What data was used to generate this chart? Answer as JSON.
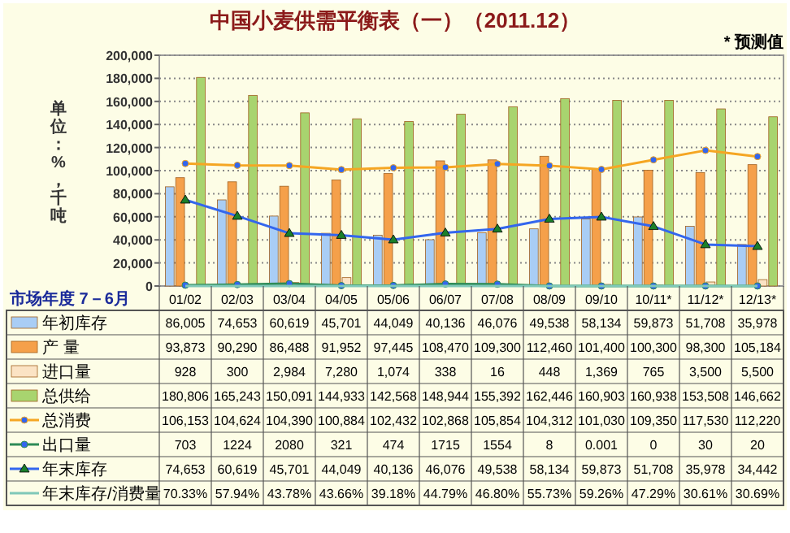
{
  "chart_data": {
    "type": "bar",
    "title": "中国小麦供需平衡表（一）（2011.12）",
    "ylabel": "单位：%，千吨",
    "xlabel": "市场年度 7－6月",
    "annotations": [
      "* 预测值"
    ],
    "categories": [
      "01/02",
      "02/03",
      "03/04",
      "04/05",
      "05/06",
      "06/07",
      "07/08",
      "08/09",
      "09/10",
      "10/11*",
      "11/12*",
      "12/13*"
    ],
    "ylim": [
      0,
      200000
    ],
    "yticks": [
      {
        "value": 0,
        "label": "0"
      },
      {
        "value": 20000,
        "label": "20,000"
      },
      {
        "value": 40000,
        "label": "40,000"
      },
      {
        "value": 60000,
        "label": "60,000"
      },
      {
        "value": 80000,
        "label": "80,000"
      },
      {
        "value": 100000,
        "label": "100,000"
      },
      {
        "value": 120000,
        "label": "120,000"
      },
      {
        "value": 140000,
        "label": "140,000"
      },
      {
        "value": 160000,
        "label": "160,000"
      },
      {
        "value": 180000,
        "label": "180,000"
      },
      {
        "value": 200000,
        "label": "200,000"
      }
    ],
    "grid": "y",
    "legend": "bottom",
    "series": [
      {
        "name": "年初库存",
        "color": "#a9cdf5",
        "values": [
          86005,
          74653,
          60619,
          45701,
          44049,
          40136,
          46076,
          49538,
          58134,
          59873,
          51708,
          35978
        ],
        "value_labels": [
          "86,005",
          "74,653",
          "60,619",
          "45,701",
          "44,049",
          "40,136",
          "46,076",
          "49,538",
          "58,134",
          "59,873",
          "51,708",
          "35,978"
        ]
      },
      {
        "name": "产 量",
        "color": "#f5a04a",
        "values": [
          93873,
          90290,
          86488,
          91952,
          97445,
          108470,
          109300,
          112460,
          101400,
          100300,
          98300,
          105184
        ],
        "value_labels": [
          "93,873",
          "90,290",
          "86,488",
          "91,952",
          "97,445",
          "108,470",
          "109,300",
          "112,460",
          "101,400",
          "100,300",
          "98,300",
          "105,184"
        ]
      },
      {
        "name": "进口量",
        "color": "#fbe3c4",
        "values": [
          928,
          300,
          2984,
          7280,
          1074,
          338,
          16,
          448,
          1369,
          765,
          3500,
          5500
        ],
        "value_labels": [
          "928",
          "300",
          "2,984",
          "7,280",
          "1,074",
          "338",
          "16",
          "448",
          "1,369",
          "765",
          "3,500",
          "5,500"
        ]
      },
      {
        "name": "总供给",
        "color": "#a8d46f",
        "values": [
          180806,
          165243,
          150091,
          144933,
          142568,
          148944,
          155392,
          162446,
          160903,
          160938,
          153508,
          146662
        ],
        "value_labels": [
          "180,806",
          "165,243",
          "150,091",
          "144,933",
          "142,568",
          "148,944",
          "155,392",
          "162,446",
          "160,903",
          "160,938",
          "153,508",
          "146,662"
        ]
      },
      {
        "name": "总消费",
        "type": "line",
        "color": "#f5a623",
        "marker": "circle",
        "values": [
          106153,
          104624,
          104390,
          100884,
          102432,
          102868,
          105854,
          104312,
          101030,
          109350,
          117530,
          112220
        ],
        "value_labels": [
          "106,153",
          "104,624",
          "104,390",
          "100,884",
          "102,432",
          "102,868",
          "105,854",
          "104,312",
          "101,030",
          "109,350",
          "117,530",
          "112,220"
        ]
      },
      {
        "name": "出口量",
        "type": "line",
        "color": "#2e8b57",
        "marker": "circle",
        "values": [
          703,
          1224,
          2080,
          321,
          474,
          1715,
          1554,
          8,
          0.001,
          0,
          30,
          20
        ],
        "value_labels": [
          "703",
          "1224",
          "2080",
          "321",
          "474",
          "1715",
          "1554",
          "8",
          "0.001",
          "0",
          "30",
          "20"
        ]
      },
      {
        "name": "年末库存",
        "type": "line",
        "color": "#3366ee",
        "marker": "triangle",
        "values": [
          74653,
          60619,
          45701,
          44049,
          40136,
          46076,
          49538,
          58134,
          59873,
          51708,
          35978,
          34442
        ],
        "value_labels": [
          "74,653",
          "60,619",
          "45,701",
          "44,049",
          "40,136",
          "46,076",
          "49,538",
          "58,134",
          "59,873",
          "51,708",
          "35,978",
          "34,442"
        ]
      },
      {
        "name": "年末库存/消费量",
        "type": "line",
        "color": "#7fc8b8",
        "marker": "none",
        "values": [
          70.33,
          57.94,
          43.78,
          43.66,
          39.18,
          44.79,
          46.8,
          55.73,
          59.26,
          47.29,
          30.61,
          30.69
        ],
        "value_labels": [
          "70.33%",
          "57.94%",
          "43.78%",
          "43.66%",
          "39.18%",
          "44.79%",
          "46.80%",
          "55.73%",
          "59.26%",
          "47.29%",
          "30.61%",
          "30.69%"
        ]
      }
    ]
  }
}
